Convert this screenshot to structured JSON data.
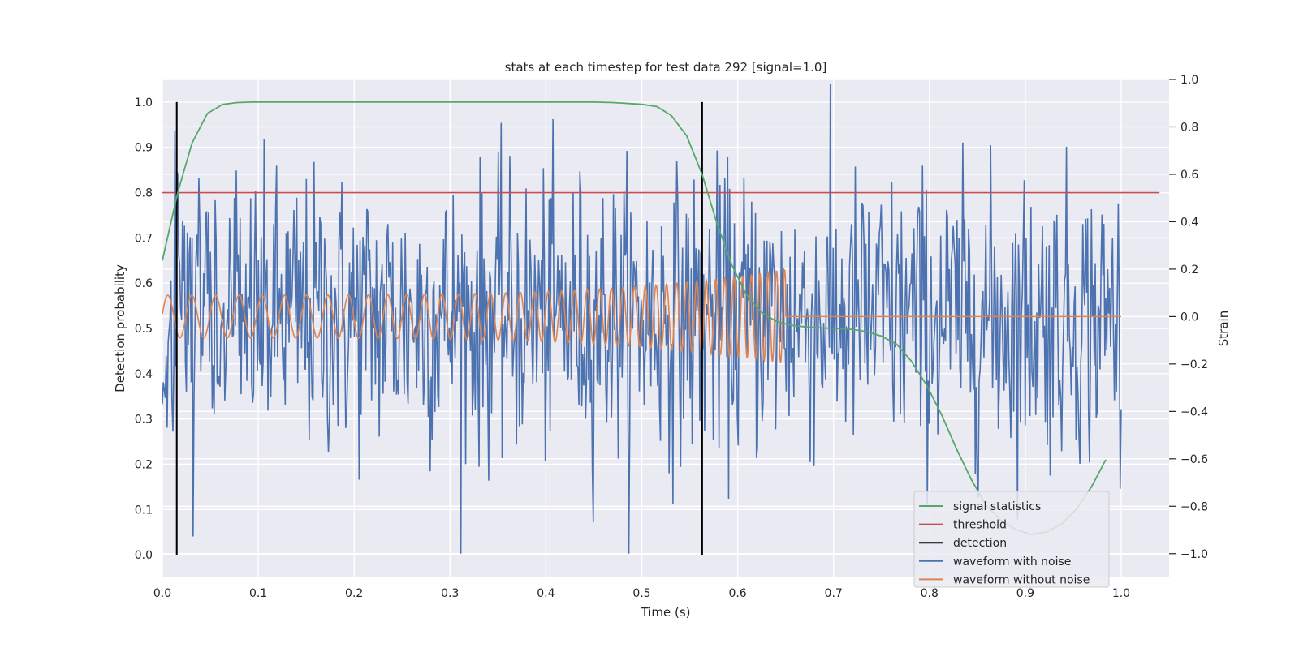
{
  "chart_data": {
    "type": "line",
    "title": "stats at each timestep for test data 292 [signal=1.0]",
    "xlabel": "Time (s)",
    "ylabel": "Detection probability",
    "y2label": "Strain",
    "xlim": [
      0.0,
      1.05
    ],
    "ylim": [
      -0.05,
      1.05
    ],
    "y2lim": [
      -1.1,
      1.0
    ],
    "xticks": [
      0.0,
      0.1,
      0.2,
      0.3,
      0.4,
      0.5,
      0.6,
      0.7,
      0.8,
      0.9,
      1.0
    ],
    "xtick_labels": [
      "0.0",
      "0.1",
      "0.2",
      "0.3",
      "0.4",
      "0.5",
      "0.6",
      "0.7",
      "0.8",
      "0.9",
      "1.0"
    ],
    "yticks": [
      0.0,
      0.1,
      0.2,
      0.3,
      0.4,
      0.5,
      0.6,
      0.7,
      0.8,
      0.9,
      1.0
    ],
    "ytick_labels": [
      "0.0",
      "0.1",
      "0.2",
      "0.3",
      "0.4",
      "0.5",
      "0.6",
      "0.7",
      "0.8",
      "0.9",
      "1.0"
    ],
    "y2ticks": [
      -1.0,
      -0.8,
      -0.6,
      -0.4,
      -0.2,
      0.0,
      0.2,
      0.4,
      0.6,
      0.8,
      1.0
    ],
    "y2tick_labels": [
      "−1.0",
      "−0.8",
      "−0.6",
      "−0.4",
      "−0.2",
      "0.0",
      "0.2",
      "0.4",
      "0.6",
      "0.8",
      "1.0"
    ],
    "grid": true,
    "legend_position": "lower-right",
    "background": "#eaeaf2",
    "series": [
      {
        "name": "signal statistics",
        "color": "#55a868",
        "axis": "left",
        "x": [
          0.0,
          0.016,
          0.031,
          0.047,
          0.063,
          0.078,
          0.094,
          0.11,
          0.2,
          0.3,
          0.4,
          0.45,
          0.47,
          0.485,
          0.5,
          0.516,
          0.531,
          0.547,
          0.563,
          0.578,
          0.594,
          0.609,
          0.625,
          0.641,
          0.656,
          0.672,
          0.688,
          0.703,
          0.719,
          0.734,
          0.75,
          0.766,
          0.781,
          0.797,
          0.813,
          0.828,
          0.844,
          0.859,
          0.875,
          0.891,
          0.906,
          0.922,
          0.938,
          0.953,
          0.969,
          0.984
        ],
        "values": [
          0.65,
          0.8,
          0.91,
          0.975,
          0.995,
          0.999,
          1.0,
          1.0,
          1.0,
          1.0,
          1.0,
          1.0,
          0.999,
          0.997,
          0.995,
          0.99,
          0.97,
          0.925,
          0.84,
          0.735,
          0.64,
          0.575,
          0.535,
          0.515,
          0.507,
          0.503,
          0.501,
          0.5,
          0.498,
          0.493,
          0.483,
          0.465,
          0.428,
          0.375,
          0.308,
          0.235,
          0.165,
          0.11,
          0.075,
          0.055,
          0.045,
          0.05,
          0.068,
          0.1,
          0.15,
          0.21
        ]
      },
      {
        "name": "threshold",
        "color": "#c44e52",
        "axis": "left",
        "x": [
          0.0,
          1.04
        ],
        "values": [
          0.8,
          0.8
        ]
      },
      {
        "name": "detection",
        "color": "#000000",
        "axis": "left",
        "type": "vlines",
        "x": [
          0.015,
          0.563
        ],
        "ymin": 0.0,
        "ymax": 1.0
      },
      {
        "name": "waveform with noise",
        "color": "#4c72b0",
        "axis": "right",
        "type": "noise",
        "x_range": [
          0.0,
          1.0
        ],
        "num_points": 1000,
        "std": 0.3,
        "min": -1.0,
        "max": 1.0
      },
      {
        "name": "waveform without noise",
        "color": "#dd8452",
        "axis": "right",
        "type": "chirp",
        "x_range": [
          0.0,
          1.0
        ],
        "merger_time": 0.65,
        "amplitude_start": 0.09,
        "amplitude_merger": 0.2,
        "frequency_start_hz": 40,
        "frequency_merger_hz": 120,
        "post_merger_value": 0.0
      }
    ]
  }
}
